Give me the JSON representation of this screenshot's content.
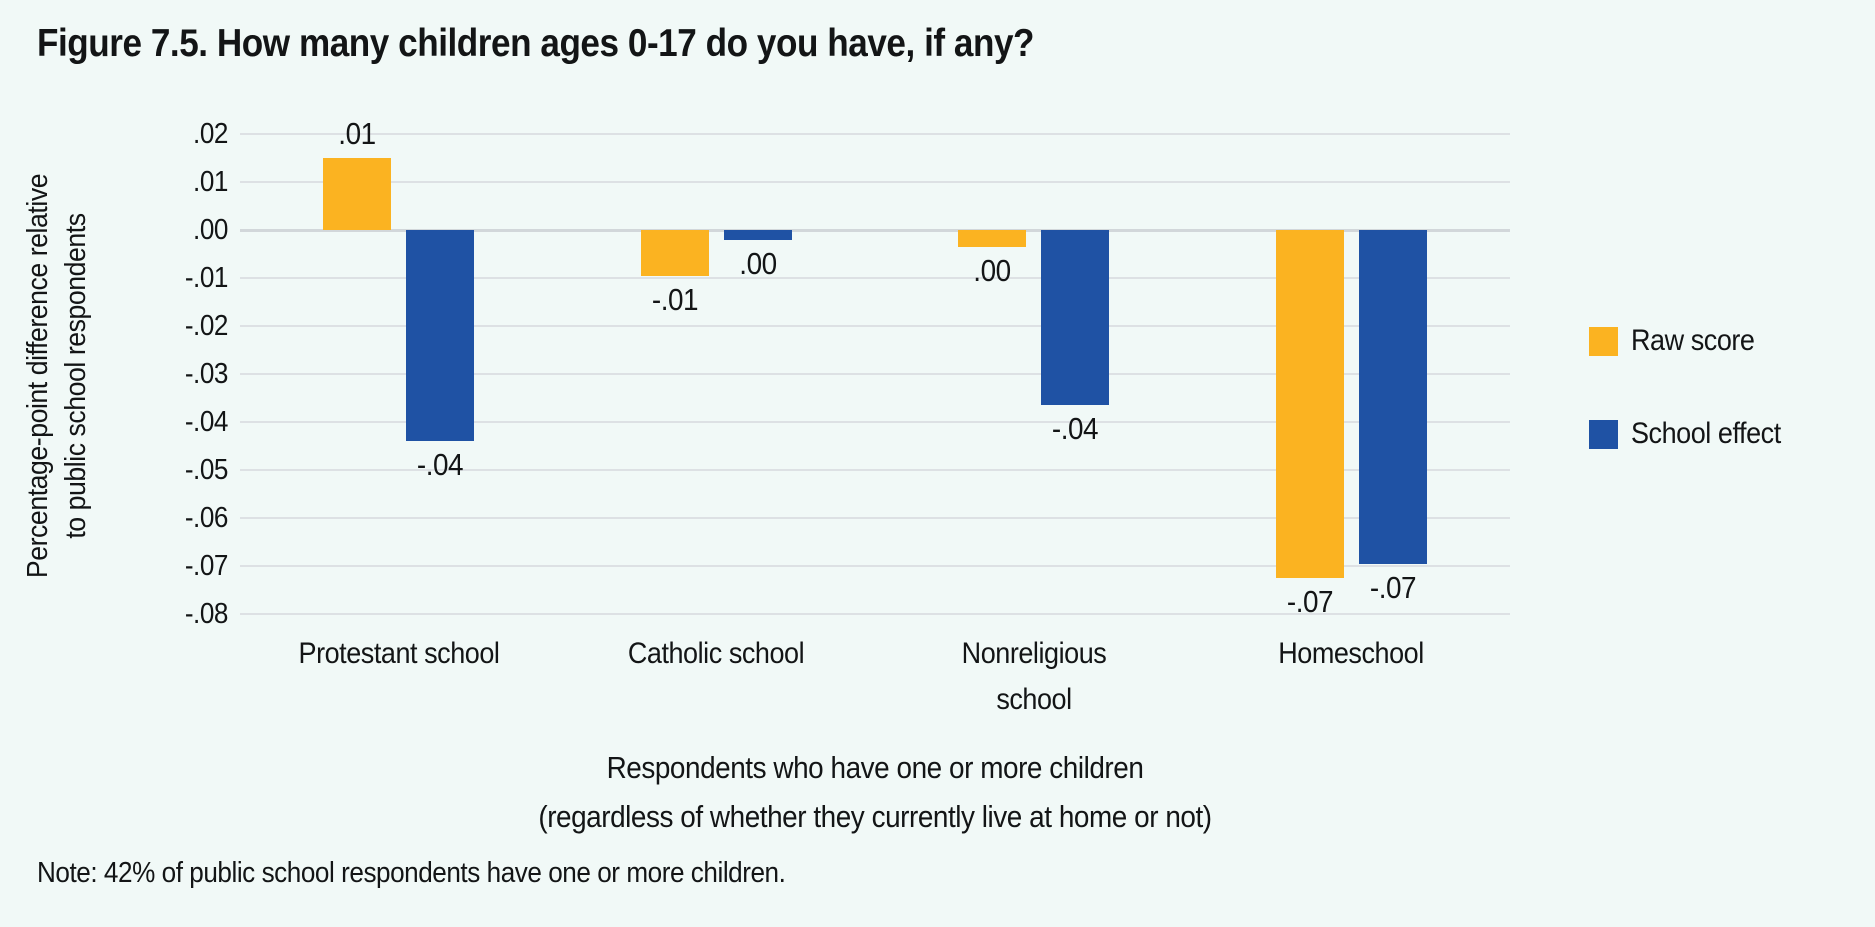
{
  "figure": {
    "title": "Figure 7.5. How many children ages 0-17 do you have, if any?",
    "note": "Note: 42% of public school respondents have one or more children."
  },
  "colors": {
    "background": "#F1F9F7",
    "raw_score": "#FBB321",
    "school_effect": "#1F52A4",
    "gridline": "#DDE1E4",
    "zero_line": "#D2D7DA",
    "text": "#131516"
  },
  "chart_data": {
    "type": "bar",
    "title": "Figure 7.5. How many children ages 0-17 do you have, if any?",
    "categories": [
      "Protestant school",
      "Catholic school",
      "Nonreligious school",
      "Homeschool"
    ],
    "category_lines": [
      [
        "Protestant school"
      ],
      [
        "Catholic school"
      ],
      [
        "Nonreligious",
        "school"
      ],
      [
        "Homeschool"
      ]
    ],
    "series": [
      {
        "name": "Raw score",
        "color": "#FBB321",
        "values": [
          0.015,
          -0.0095,
          -0.0035,
          -0.0725
        ],
        "labels": [
          ".01",
          "-.01",
          ".00",
          "-.07"
        ]
      },
      {
        "name": "School effect",
        "color": "#1F52A4",
        "values": [
          -0.044,
          -0.002,
          -0.0365,
          -0.0695
        ],
        "labels": [
          "-.04",
          ".00",
          "-.04",
          "-.07"
        ]
      }
    ],
    "ylabel": "Percentage-point difference relative to public school respondents",
    "ylabel_lines": [
      "Percentage-point difference relative",
      "to public school respondents"
    ],
    "xlabel_lines": [
      "Respondents who have one or more children",
      "(regardless of whether they currently live at home or not)"
    ],
    "yticks": [
      {
        "value": 0.02,
        "label": ".02"
      },
      {
        "value": 0.01,
        "label": ".01"
      },
      {
        "value": 0.0,
        "label": ".00"
      },
      {
        "value": -0.01,
        "label": "-.01"
      },
      {
        "value": -0.02,
        "label": "-.02"
      },
      {
        "value": -0.03,
        "label": "-.03"
      },
      {
        "value": -0.04,
        "label": "-.04"
      },
      {
        "value": -0.05,
        "label": "-.05"
      },
      {
        "value": -0.06,
        "label": "-.06"
      },
      {
        "value": -0.07,
        "label": "-.07"
      },
      {
        "value": -0.08,
        "label": "-.08"
      }
    ],
    "ylim": [
      -0.08,
      0.02
    ],
    "grid": true,
    "legend_position": "right"
  }
}
